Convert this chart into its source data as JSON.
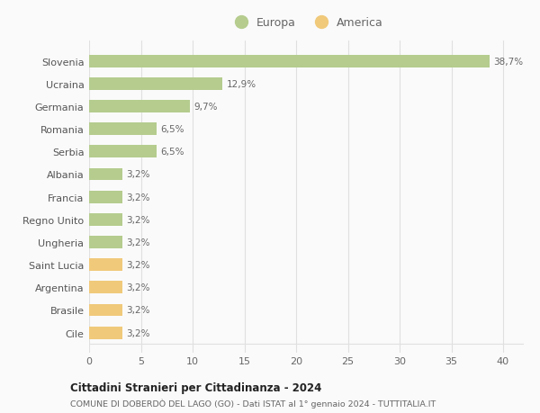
{
  "categories": [
    "Cile",
    "Brasile",
    "Argentina",
    "Saint Lucia",
    "Ungheria",
    "Regno Unito",
    "Francia",
    "Albania",
    "Serbia",
    "Romania",
    "Germania",
    "Ucraina",
    "Slovenia"
  ],
  "values": [
    3.2,
    3.2,
    3.2,
    3.2,
    3.2,
    3.2,
    3.2,
    3.2,
    6.5,
    6.5,
    9.7,
    12.9,
    38.7
  ],
  "labels": [
    "3,2%",
    "3,2%",
    "3,2%",
    "3,2%",
    "3,2%",
    "3,2%",
    "3,2%",
    "3,2%",
    "6,5%",
    "6,5%",
    "9,7%",
    "12,9%",
    "38,7%"
  ],
  "colors": [
    "#f0c97a",
    "#f0c97a",
    "#f0c97a",
    "#f0c97a",
    "#b5cc8e",
    "#b5cc8e",
    "#b5cc8e",
    "#b5cc8e",
    "#b5cc8e",
    "#b5cc8e",
    "#b5cc8e",
    "#b5cc8e",
    "#b5cc8e"
  ],
  "europa_color": "#b5cc8e",
  "america_color": "#f0c97a",
  "title1": "Cittadini Stranieri per Cittadinanza - 2024",
  "title2": "COMUNE DI DOBERDÒ DEL LAGO (GO) - Dati ISTAT al 1° gennaio 2024 - TUTTITALIA.IT",
  "xlim": [
    0,
    42
  ],
  "xticks": [
    0,
    5,
    10,
    15,
    20,
    25,
    30,
    35,
    40
  ],
  "bar_height": 0.55,
  "background_color": "#fafafa",
  "grid_color": "#e0e0e0",
  "label_color": "#666666",
  "ytick_color": "#555555"
}
